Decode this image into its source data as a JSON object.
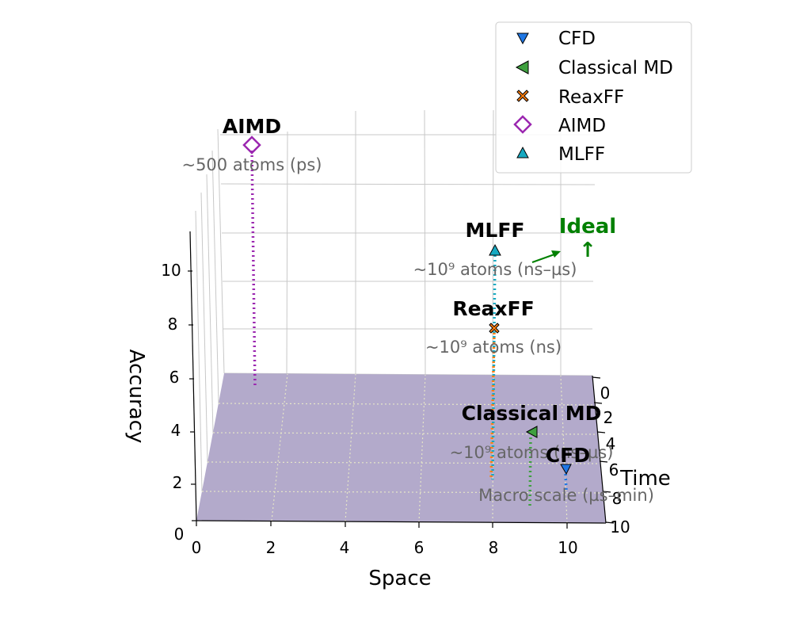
{
  "chart_data": {
    "type": "scatter",
    "view": "3d",
    "title": "",
    "axes": {
      "x": {
        "label": "Space",
        "ticks": [
          "0",
          "2",
          "4",
          "6",
          "8",
          "10"
        ]
      },
      "y": {
        "label": "Time",
        "ticks": [
          "0",
          "2",
          "4",
          "6",
          "8",
          "10"
        ]
      },
      "z": {
        "label": "Accuracy",
        "ticks": [
          "0",
          "2",
          "4",
          "6",
          "8",
          "10"
        ]
      }
    },
    "series": [
      {
        "name": "CFD",
        "marker": "triangle-down",
        "color": "#1f77e4",
        "x": 10,
        "y": 6,
        "z": 2,
        "label": "CFD",
        "note": "Macro scale (µs–min)"
      },
      {
        "name": "Classical MD",
        "marker": "triangle-left",
        "color": "#3fa03f",
        "x": 9,
        "y": 4,
        "z": 4,
        "label": "Classical MD",
        "note": "~10⁹ atoms (ns–µs)"
      },
      {
        "name": "ReaxFF",
        "marker": "x",
        "color": "#ff7f0e",
        "x": 8,
        "y": 0,
        "z": 8,
        "label": "ReaxFF",
        "note": "~10⁹ atoms (ns)"
      },
      {
        "name": "AIMD",
        "marker": "diamond-open",
        "color": "#9b27b0",
        "x": 2,
        "y": 0,
        "z": 12,
        "label": "AIMD",
        "note": "~500 atoms (ps)"
      },
      {
        "name": "MLFF",
        "marker": "triangle-up",
        "color": "#17a9c1",
        "x": 8,
        "y": 0,
        "z": 11,
        "label": "MLFF",
        "note": "~10⁹ atoms (ns–µs)"
      }
    ],
    "annotation": {
      "text": "Ideal",
      "arrow": "↑",
      "color": "#008000"
    },
    "legend": {
      "position": "top-right"
    },
    "grid": true,
    "plane_color": "#b3aacb"
  }
}
